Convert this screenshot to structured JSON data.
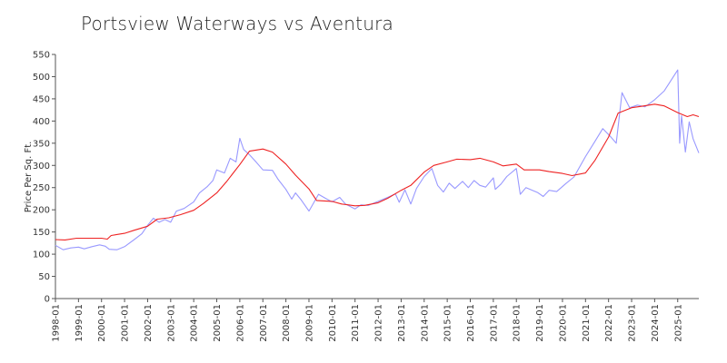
{
  "chart_data": {
    "type": "line",
    "title": "Portsview Waterways vs Aventura",
    "xlabel": "",
    "ylabel": "Price Per Sq. Ft.",
    "ylim": [
      0,
      550
    ],
    "yticks": [
      0,
      50,
      100,
      150,
      200,
      250,
      300,
      350,
      400,
      450,
      500,
      550
    ],
    "xlim": [
      "1998-01",
      "2025-12"
    ],
    "xtick_labels": [
      "1998-01",
      "1999-01",
      "2000-01",
      "2001-01",
      "2002-01",
      "2003-01",
      "2004-01",
      "2005-01",
      "2006-01",
      "2007-01",
      "2008-01",
      "2009-01",
      "2010-01",
      "2011-01",
      "2012-01",
      "2013-01",
      "2014-01",
      "2015-01",
      "2016-01",
      "2017-01",
      "2018-01",
      "2019-01",
      "2020-01",
      "2021-01",
      "2022-01",
      "2023-01",
      "2024-01",
      "2025-01"
    ],
    "grid": false,
    "legend": "none",
    "series": [
      {
        "color": "#9999ff",
        "points": [
          [
            "1998-01",
            120
          ],
          [
            "1998-05",
            110
          ],
          [
            "1998-09",
            114
          ],
          [
            "1999-01",
            116
          ],
          [
            "1999-04",
            112
          ],
          [
            "1999-08",
            117
          ],
          [
            "1999-12",
            121
          ],
          [
            "2000-03",
            118
          ],
          [
            "2000-05",
            111
          ],
          [
            "2000-09",
            110
          ],
          [
            "2001-01",
            117
          ],
          [
            "2001-06",
            133
          ],
          [
            "2001-10",
            146
          ],
          [
            "2002-01",
            165
          ],
          [
            "2002-04",
            181
          ],
          [
            "2002-07",
            172
          ],
          [
            "2002-10",
            178
          ],
          [
            "2003-01",
            172
          ],
          [
            "2003-04",
            197
          ],
          [
            "2003-08",
            203
          ],
          [
            "2004-01",
            218
          ],
          [
            "2004-04",
            238
          ],
          [
            "2004-08",
            252
          ],
          [
            "2004-11",
            266
          ],
          [
            "2005-01",
            290
          ],
          [
            "2005-05",
            283
          ],
          [
            "2005-08",
            316
          ],
          [
            "2005-11",
            308
          ],
          [
            "2006-01",
            361
          ],
          [
            "2006-03",
            336
          ],
          [
            "2006-06",
            324
          ],
          [
            "2006-09",
            310
          ],
          [
            "2007-01",
            290
          ],
          [
            "2007-06",
            289
          ],
          [
            "2007-09",
            268
          ],
          [
            "2008-01",
            246
          ],
          [
            "2008-04",
            224
          ],
          [
            "2008-06",
            238
          ],
          [
            "2008-09",
            222
          ],
          [
            "2009-01",
            197
          ],
          [
            "2009-06",
            235
          ],
          [
            "2009-10",
            225
          ],
          [
            "2010-01",
            218
          ],
          [
            "2010-05",
            228
          ],
          [
            "2010-08",
            213
          ],
          [
            "2011-01",
            202
          ],
          [
            "2011-04",
            211
          ],
          [
            "2011-08",
            210
          ],
          [
            "2012-01",
            219
          ],
          [
            "2012-06",
            228
          ],
          [
            "2012-10",
            236
          ],
          [
            "2012-12",
            217
          ],
          [
            "2013-03",
            245
          ],
          [
            "2013-06",
            213
          ],
          [
            "2013-09",
            248
          ],
          [
            "2014-01",
            275
          ],
          [
            "2014-05",
            293
          ],
          [
            "2014-08",
            255
          ],
          [
            "2014-11",
            240
          ],
          [
            "2015-02",
            260
          ],
          [
            "2015-05",
            248
          ],
          [
            "2015-09",
            264
          ],
          [
            "2015-12",
            250
          ],
          [
            "2016-03",
            266
          ],
          [
            "2016-06",
            255
          ],
          [
            "2016-09",
            251
          ],
          [
            "2017-01",
            272
          ],
          [
            "2017-02",
            246
          ],
          [
            "2017-05",
            258
          ],
          [
            "2017-08",
            275
          ],
          [
            "2018-01",
            293
          ],
          [
            "2018-03",
            235
          ],
          [
            "2018-06",
            250
          ],
          [
            "2018-12",
            239
          ],
          [
            "2019-03",
            230
          ],
          [
            "2019-06",
            244
          ],
          [
            "2019-10",
            241
          ],
          [
            "2020-03",
            260
          ],
          [
            "2020-07",
            274
          ],
          [
            "2021-01",
            320
          ],
          [
            "2021-06",
            355
          ],
          [
            "2021-10",
            383
          ],
          [
            "2022-02",
            365
          ],
          [
            "2022-05",
            350
          ],
          [
            "2022-08",
            464
          ],
          [
            "2022-12",
            430
          ],
          [
            "2023-04",
            436
          ],
          [
            "2023-08",
            432
          ],
          [
            "2024-01",
            448
          ],
          [
            "2024-06",
            468
          ],
          [
            "2025-01",
            515
          ],
          [
            "2025-02",
            350
          ],
          [
            "2025-03",
            412
          ],
          [
            "2025-05",
            330
          ],
          [
            "2025-07",
            398
          ],
          [
            "2025-09",
            360
          ],
          [
            "2025-12",
            328
          ]
        ]
      },
      {
        "color": "#ee2222",
        "points": [
          [
            "1998-01",
            133
          ],
          [
            "1998-06",
            132
          ],
          [
            "1998-12",
            136
          ],
          [
            "1999-06",
            136
          ],
          [
            "2000-01",
            136
          ],
          [
            "2000-04",
            134
          ],
          [
            "2000-06",
            142
          ],
          [
            "2001-01",
            147
          ],
          [
            "2001-06",
            154
          ],
          [
            "2002-01",
            163
          ],
          [
            "2002-06",
            179
          ],
          [
            "2002-12",
            182
          ],
          [
            "2003-06",
            189
          ],
          [
            "2004-01",
            199
          ],
          [
            "2004-06",
            214
          ],
          [
            "2005-01",
            238
          ],
          [
            "2005-06",
            263
          ],
          [
            "2006-01",
            302
          ],
          [
            "2006-06",
            332
          ],
          [
            "2007-01",
            337
          ],
          [
            "2007-06",
            330
          ],
          [
            "2008-01",
            303
          ],
          [
            "2008-06",
            278
          ],
          [
            "2009-01",
            247
          ],
          [
            "2009-05",
            221
          ],
          [
            "2010-01",
            219
          ],
          [
            "2010-06",
            213
          ],
          [
            "2011-01",
            209
          ],
          [
            "2011-06",
            210
          ],
          [
            "2012-01",
            216
          ],
          [
            "2012-06",
            226
          ],
          [
            "2013-01",
            244
          ],
          [
            "2013-06",
            255
          ],
          [
            "2014-01",
            285
          ],
          [
            "2014-06",
            300
          ],
          [
            "2015-01",
            308
          ],
          [
            "2015-06",
            314
          ],
          [
            "2016-01",
            313
          ],
          [
            "2016-06",
            316
          ],
          [
            "2017-01",
            308
          ],
          [
            "2017-06",
            299
          ],
          [
            "2018-01",
            303
          ],
          [
            "2018-05",
            290
          ],
          [
            "2019-01",
            290
          ],
          [
            "2019-06",
            286
          ],
          [
            "2020-01",
            282
          ],
          [
            "2020-06",
            277
          ],
          [
            "2021-01",
            283
          ],
          [
            "2021-06",
            312
          ],
          [
            "2022-01",
            364
          ],
          [
            "2022-06",
            418
          ],
          [
            "2023-01",
            430
          ],
          [
            "2023-06",
            433
          ],
          [
            "2024-01",
            438
          ],
          [
            "2024-06",
            434
          ],
          [
            "2025-01",
            419
          ],
          [
            "2025-06",
            410
          ],
          [
            "2025-09",
            414
          ],
          [
            "2025-12",
            410
          ]
        ]
      }
    ]
  }
}
